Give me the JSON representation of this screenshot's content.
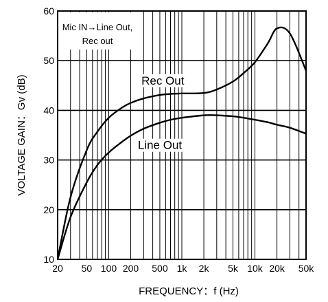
{
  "chart_data": {
    "type": "line",
    "title": "",
    "xlabel": "FREQUENCY：f (Hz)",
    "ylabel": "VOLTAGE GAIN：Gv (dB)",
    "xscale": "log",
    "xlim": [
      20,
      50000
    ],
    "ylim": [
      10,
      60
    ],
    "x_ticks": [
      20,
      50,
      100,
      200,
      500,
      1000,
      2000,
      5000,
      10000,
      20000,
      50000
    ],
    "x_tick_labels": [
      "20",
      "50",
      "100",
      "200",
      "500",
      "1k",
      "2k",
      "5k",
      "10k",
      "20k",
      "50k"
    ],
    "y_ticks": [
      10,
      20,
      30,
      40,
      50,
      60
    ],
    "y_tick_labels": [
      "10",
      "20",
      "30",
      "40",
      "50",
      "60"
    ],
    "grid": true,
    "annotation_lines": [
      "Mic IN→Line Out,",
      "Rec out"
    ],
    "series": [
      {
        "name": "Rec Out",
        "x": [
          20,
          30,
          50,
          70,
          100,
          150,
          200,
          300,
          500,
          700,
          1000,
          2000,
          3000,
          5000,
          7000,
          10000,
          15000,
          20000,
          30000,
          50000
        ],
        "y": [
          10,
          22.5,
          32,
          35.7,
          38.5,
          40.5,
          41.5,
          42.4,
          43.1,
          43.3,
          43.4,
          43.5,
          44.2,
          45.8,
          47.5,
          49.7,
          53.5,
          56.5,
          55.5,
          48
        ]
      },
      {
        "name": "Line Out",
        "x": [
          20,
          30,
          50,
          70,
          100,
          150,
          200,
          300,
          500,
          700,
          1000,
          2000,
          3000,
          5000,
          7000,
          10000,
          15000,
          20000,
          30000,
          50000
        ],
        "y": [
          10,
          18.5,
          25.5,
          29,
          31.5,
          33.6,
          34.9,
          36.3,
          37.5,
          38.1,
          38.5,
          39,
          39,
          38.8,
          38.5,
          38.1,
          37.6,
          37.1,
          36.5,
          35.3
        ]
      }
    ]
  }
}
